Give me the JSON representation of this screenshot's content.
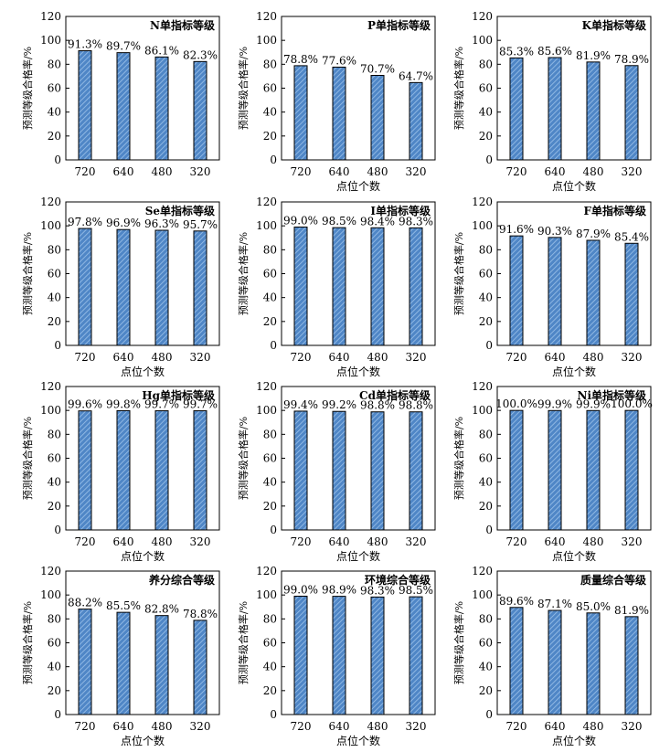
{
  "style": {
    "bar_fill": "#4f86c6",
    "bar_stripe": "#9ec3ea",
    "bar_stroke": "#000000",
    "axis_color": "#000000"
  },
  "chart_data": [
    {
      "type": "bar",
      "title": "N单指标等级",
      "categories": [
        "720",
        "640",
        "480",
        "320"
      ],
      "values": [
        91.3,
        89.7,
        86.1,
        82.3
      ],
      "data_labels": [
        "91.3%",
        "89.7%",
        "86.1%",
        "82.3%"
      ],
      "ylabel": "预测等级合格率/%",
      "xlabel": "",
      "ylim": [
        0,
        120
      ],
      "yticks": [
        0,
        20,
        40,
        60,
        80,
        100,
        120
      ],
      "grid": false,
      "legend": "none"
    },
    {
      "type": "bar",
      "title": "P单指标等级",
      "categories": [
        "720",
        "640",
        "480",
        "320"
      ],
      "values": [
        78.8,
        77.6,
        70.7,
        64.7
      ],
      "data_labels": [
        "78.8%",
        "77.6%",
        "70.7%",
        "64.7%"
      ],
      "ylabel": "预测等级合格率/%",
      "xlabel": "点位个数",
      "ylim": [
        0,
        120
      ],
      "yticks": [
        0,
        20,
        40,
        60,
        80,
        100,
        120
      ],
      "grid": false,
      "legend": "none"
    },
    {
      "type": "bar",
      "title": "K单指标等级",
      "categories": [
        "720",
        "640",
        "480",
        "320"
      ],
      "values": [
        85.3,
        85.6,
        81.9,
        78.9
      ],
      "data_labels": [
        "85.3%",
        "85.6%",
        "81.9%",
        "78.9%"
      ],
      "ylabel": "预测等级合格率/%",
      "xlabel": "点位个数",
      "ylim": [
        0,
        120
      ],
      "yticks": [
        0,
        20,
        40,
        60,
        80,
        100,
        120
      ],
      "grid": false,
      "legend": "none"
    },
    {
      "type": "bar",
      "title": "Se单指标等级",
      "categories": [
        "720",
        "640",
        "480",
        "320"
      ],
      "values": [
        97.8,
        96.9,
        96.3,
        95.7
      ],
      "data_labels": [
        "97.8%",
        "96.9%",
        "96.3%",
        "95.7%"
      ],
      "ylabel": "预测等级合格率/%",
      "xlabel": "点位个数",
      "ylim": [
        0,
        120
      ],
      "yticks": [
        0,
        20,
        40,
        60,
        80,
        100,
        120
      ],
      "grid": false,
      "legend": "none"
    },
    {
      "type": "bar",
      "title": "I单指标等级",
      "categories": [
        "720",
        "640",
        "480",
        "320"
      ],
      "values": [
        99.0,
        98.5,
        98.4,
        98.3
      ],
      "data_labels": [
        "99.0%",
        "98.5%",
        "98.4%",
        "98.3%"
      ],
      "ylabel": "预测等级合格率/%",
      "xlabel": "点位个数",
      "ylim": [
        0,
        120
      ],
      "yticks": [
        0,
        20,
        40,
        60,
        80,
        100,
        120
      ],
      "grid": false,
      "legend": "none"
    },
    {
      "type": "bar",
      "title": "F单指标等级",
      "categories": [
        "720",
        "640",
        "480",
        "320"
      ],
      "values": [
        91.6,
        90.3,
        87.9,
        85.4
      ],
      "data_labels": [
        "91.6%",
        "90.3%",
        "87.9%",
        "85.4%"
      ],
      "ylabel": "预测等级合格率/%",
      "xlabel": "点位个数",
      "ylim": [
        0,
        120
      ],
      "yticks": [
        0,
        20,
        40,
        60,
        80,
        100,
        120
      ],
      "grid": false,
      "legend": "none"
    },
    {
      "type": "bar",
      "title": "Hg单指标等级",
      "categories": [
        "720",
        "640",
        "480",
        "320"
      ],
      "values": [
        99.6,
        99.8,
        99.7,
        99.7
      ],
      "data_labels": [
        "99.6%",
        "99.8%",
        "99.7%",
        "99.7%"
      ],
      "ylabel": "预测等级合格率/%",
      "xlabel": "点位个数",
      "ylim": [
        0,
        120
      ],
      "yticks": [
        0,
        20,
        40,
        60,
        80,
        100,
        120
      ],
      "grid": false,
      "legend": "none"
    },
    {
      "type": "bar",
      "title": "Cd单指标等级",
      "categories": [
        "720",
        "640",
        "480",
        "320"
      ],
      "values": [
        99.4,
        99.2,
        98.8,
        98.8
      ],
      "data_labels": [
        "99.4%",
        "99.2%",
        "98.8%",
        "98.8%"
      ],
      "ylabel": "预测等级合格率/%",
      "xlabel": "点位个数",
      "ylim": [
        0,
        120
      ],
      "yticks": [
        0,
        20,
        40,
        60,
        80,
        100,
        120
      ],
      "grid": false,
      "legend": "none"
    },
    {
      "type": "bar",
      "title": "Ni单指标等级",
      "categories": [
        "720",
        "640",
        "480",
        "320"
      ],
      "values": [
        100.0,
        99.9,
        99.9,
        100.0
      ],
      "data_labels": [
        "100.0%",
        "99.9%",
        "99.9%",
        "100.0%"
      ],
      "ylabel": "预测等级合格率/%",
      "xlabel": "点位个数",
      "ylim": [
        0,
        120
      ],
      "yticks": [
        0,
        20,
        40,
        60,
        80,
        100,
        120
      ],
      "grid": false,
      "legend": "none"
    },
    {
      "type": "bar",
      "title": "养分综合等级",
      "categories": [
        "720",
        "640",
        "480",
        "320"
      ],
      "values": [
        88.2,
        85.5,
        82.8,
        78.8
      ],
      "data_labels": [
        "88.2%",
        "85.5%",
        "82.8%",
        "78.8%"
      ],
      "ylabel": "预测等级合格率/%",
      "xlabel": "点位个数",
      "ylim": [
        0,
        120
      ],
      "yticks": [
        0,
        20,
        40,
        60,
        80,
        100,
        120
      ],
      "grid": false,
      "legend": "none"
    },
    {
      "type": "bar",
      "title": "环境综合等级",
      "categories": [
        "720",
        "640",
        "480",
        "320"
      ],
      "values": [
        99.0,
        98.9,
        98.3,
        98.5
      ],
      "data_labels": [
        "99.0%",
        "98.9%",
        "98.3%",
        "98.5%"
      ],
      "ylabel": "预测等级合格率/%",
      "xlabel": "点位个数",
      "ylim": [
        0,
        120
      ],
      "yticks": [
        0,
        20,
        40,
        60,
        80,
        100,
        120
      ],
      "grid": false,
      "legend": "none"
    },
    {
      "type": "bar",
      "title": "质量综合等级",
      "categories": [
        "720",
        "640",
        "480",
        "320"
      ],
      "values": [
        89.6,
        87.1,
        85.0,
        81.9
      ],
      "data_labels": [
        "89.6%",
        "87.1%",
        "85.0%",
        "81.9%"
      ],
      "ylabel": "预测等级合格率/%",
      "xlabel": "点位个数",
      "ylim": [
        0,
        120
      ],
      "yticks": [
        0,
        20,
        40,
        60,
        80,
        100,
        120
      ],
      "grid": false,
      "legend": "none"
    }
  ]
}
